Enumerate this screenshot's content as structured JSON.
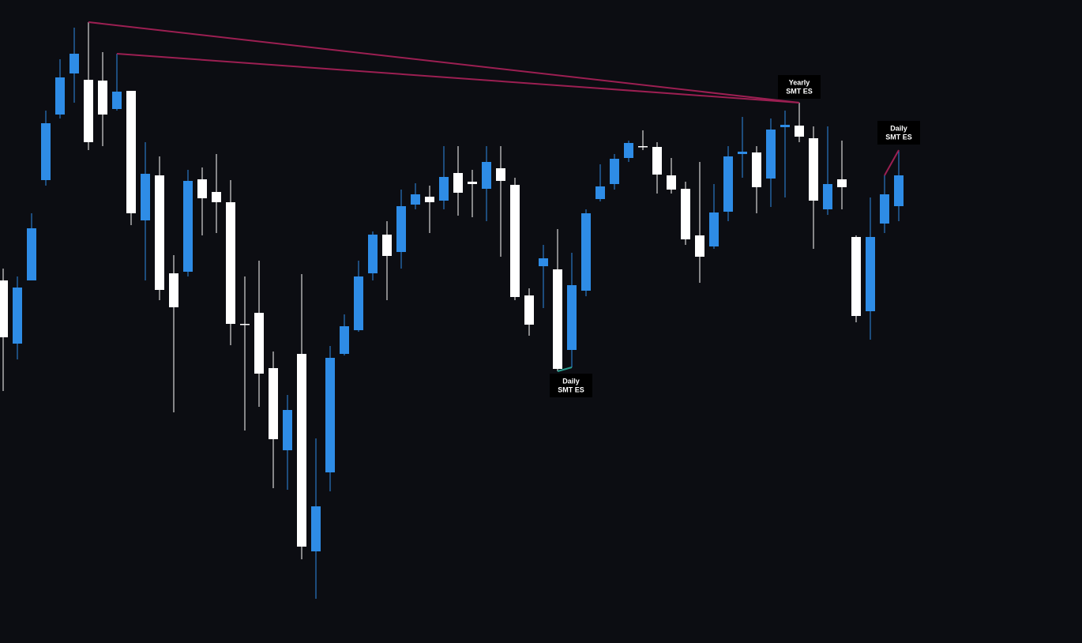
{
  "chart_data": {
    "type": "candlestick",
    "up_color": "#2e8ce6",
    "down_color": "#ffffff",
    "background": "#0c0d12",
    "open": [
      459,
      379,
      459,
      586,
      669,
      721,
      713,
      712,
      676,
      699,
      535,
      592,
      468,
      470,
      587,
      571,
      558,
      404,
      418,
      348,
      244,
      366,
      116,
      216,
      366,
      396,
      468,
      517,
      495,
      555,
      565,
      560,
      595,
      584,
      575,
      601,
      580,
      440,
      477,
      473,
      371,
      446,
      562,
      581,
      614,
      629,
      628,
      592,
      575,
      516,
      502,
      546,
      619,
      621,
      588,
      653,
      655,
      639,
      549,
      587,
      514,
      420,
      531,
      553
    ],
    "high": [
      474,
      464,
      544,
      674,
      739,
      779,
      786,
      748,
      746,
      699,
      634,
      616,
      491,
      599,
      602,
      619,
      586,
      464,
      484,
      369,
      314,
      467,
      259,
      376,
      416,
      484,
      521,
      534,
      574,
      582,
      579,
      629,
      629,
      599,
      629,
      629,
      589,
      449,
      504,
      524,
      494,
      549,
      606,
      619,
      636,
      649,
      634,
      614,
      584,
      609,
      581,
      629,
      666,
      629,
      664,
      674,
      684,
      654,
      654,
      636,
      516,
      564,
      592,
      624
    ],
    "low": [
      319,
      359,
      459,
      579,
      664,
      684,
      624,
      629,
      674,
      529,
      459,
      434,
      292,
      464,
      516,
      519,
      377,
      269,
      299,
      196,
      194,
      106,
      56,
      192,
      364,
      394,
      459,
      434,
      474,
      549,
      519,
      549,
      541,
      539,
      534,
      489,
      434,
      389,
      424,
      344,
      349,
      439,
      559,
      574,
      609,
      624,
      569,
      569,
      504,
      456,
      499,
      534,
      589,
      544,
      552,
      564,
      634,
      499,
      542,
      549,
      406,
      384,
      519,
      534
    ],
    "close": [
      387,
      450,
      525,
      658,
      716,
      746,
      634,
      669,
      698,
      544,
      594,
      447,
      425,
      585,
      563,
      558,
      404,
      404,
      341,
      258,
      295,
      122,
      173,
      361,
      401,
      464,
      517,
      490,
      553,
      568,
      558,
      590,
      570,
      581,
      609,
      585,
      438,
      403,
      487,
      347,
      453,
      544,
      578,
      613,
      633,
      628,
      593,
      574,
      511,
      489,
      545,
      616,
      622,
      577,
      650,
      656,
      641,
      560,
      581,
      577,
      414,
      514,
      568,
      592
    ],
    "annotations": [
      {
        "text": [
          "Yearly",
          "SMT ES"
        ],
        "color": "#9c1f52"
      },
      {
        "text": [
          "Daily",
          "SMT ES"
        ],
        "color": "#2a9d8f"
      },
      {
        "text": [
          "Daily",
          "SMT ES"
        ],
        "color": "#9c1f52"
      }
    ]
  }
}
